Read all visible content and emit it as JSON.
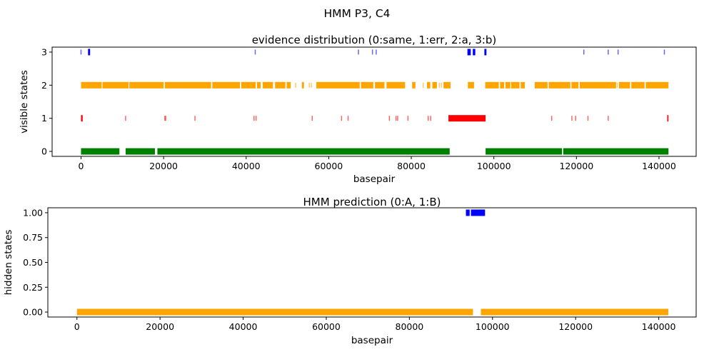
{
  "figure_title": "HMM P3, C4",
  "colors": {
    "state0": "#008000",
    "state1": "#ff0000",
    "state2": "#ffa500",
    "state3": "#0000ff",
    "hidden0": "#ffa500",
    "hidden1": "#0000ff"
  },
  "chart_data": [
    {
      "type": "scatter",
      "marker": "vertical-tick",
      "title": "evidence distribution (0:same, 1:err, 2:a, 3:b)",
      "xlabel": "basepair",
      "ylabel": "visible states",
      "xlim": [
        -7000,
        149000
      ],
      "ylim": [
        -0.15,
        3.15
      ],
      "xticks": [
        0,
        20000,
        40000,
        60000,
        80000,
        100000,
        120000,
        140000
      ],
      "yticks": [
        0,
        1,
        2,
        3
      ],
      "grid": false,
      "series": [
        {
          "state": 0,
          "color": "#008000",
          "segments": [
            [
              0,
              9300
            ],
            [
              10800,
              17900
            ],
            [
              18500,
              89300
            ],
            [
              98000,
              116500
            ],
            [
              116800,
              142300
            ]
          ],
          "points": []
        },
        {
          "state": 1,
          "color": "#ff0000",
          "segments": [
            [
              0,
              400
            ],
            [
              89000,
              98000
            ],
            [
              142000,
              142300
            ]
          ],
          "points": [
            10800,
            20300,
            20500,
            27600,
            41900,
            42400,
            56000,
            63100,
            64700,
            74700,
            76300,
            76700,
            79200,
            84100,
            84700,
            114000,
            118900,
            119800,
            122800,
            127700
          ]
        },
        {
          "state": 2,
          "color": "#ffa500",
          "segments": [
            [
              0,
              5000
            ],
            [
              5200,
              11500
            ],
            [
              11700,
              20000
            ],
            [
              20300,
              31500
            ],
            [
              31800,
              38500
            ],
            [
              38800,
              42300
            ],
            [
              42600,
              43500
            ],
            [
              44000,
              46500
            ],
            [
              47000,
              49500
            ],
            [
              49800,
              50800
            ],
            [
              53500,
              54000
            ],
            [
              57000,
              67500
            ],
            [
              67800,
              70800
            ],
            [
              71200,
              73500
            ],
            [
              74000,
              78500
            ],
            [
              80200,
              81000
            ],
            [
              83800,
              84600
            ],
            [
              85100,
              86200
            ],
            [
              87800,
              89500
            ],
            [
              93700,
              95200
            ],
            [
              97900,
              101200
            ],
            [
              101500,
              102500
            ],
            [
              102800,
              104000
            ],
            [
              104200,
              106200
            ],
            [
              106500,
              107500
            ],
            [
              109900,
              113000
            ],
            [
              113300,
              118500
            ],
            [
              118800,
              120500
            ],
            [
              120800,
              129600
            ],
            [
              130300,
              133000
            ],
            [
              133300,
              136500
            ],
            [
              136800,
              142300
            ]
          ],
          "points": [
            40500,
            45800,
            47700,
            52000,
            55300,
            55800,
            61100,
            72300,
            82900,
            86800,
            87300,
            118400,
            129900
          ]
        },
        {
          "state": 3,
          "color": "#0000ff",
          "segments": [
            [
              1700,
              2200
            ],
            [
              93600,
              94400
            ],
            [
              94900,
              95500
            ],
            [
              97700,
              98200
            ]
          ],
          "points": [
            0,
            42200,
            67200,
            70600,
            71500,
            121800,
            127700,
            130100,
            141300
          ]
        }
      ]
    },
    {
      "type": "scatter",
      "marker": "vertical-tick",
      "title": "HMM prediction (0:A, 1:B)",
      "xlabel": "basepair",
      "ylabel": "hidden states",
      "xlim": [
        -7000,
        149000
      ],
      "ylim": [
        -0.05,
        1.05
      ],
      "xticks": [
        0,
        20000,
        40000,
        60000,
        80000,
        100000,
        120000,
        140000
      ],
      "yticks": [
        0.0,
        0.25,
        0.5,
        0.75,
        1.0
      ],
      "grid": false,
      "series": [
        {
          "state": 0,
          "color": "#ffa500",
          "segments": [
            [
              0,
              95300
            ],
            [
              97200,
              142300
            ]
          ],
          "points": []
        },
        {
          "state": 1,
          "color": "#0000ff",
          "segments": [
            [
              93600,
              94500
            ],
            [
              94800,
              98200
            ]
          ],
          "points": []
        }
      ]
    }
  ]
}
